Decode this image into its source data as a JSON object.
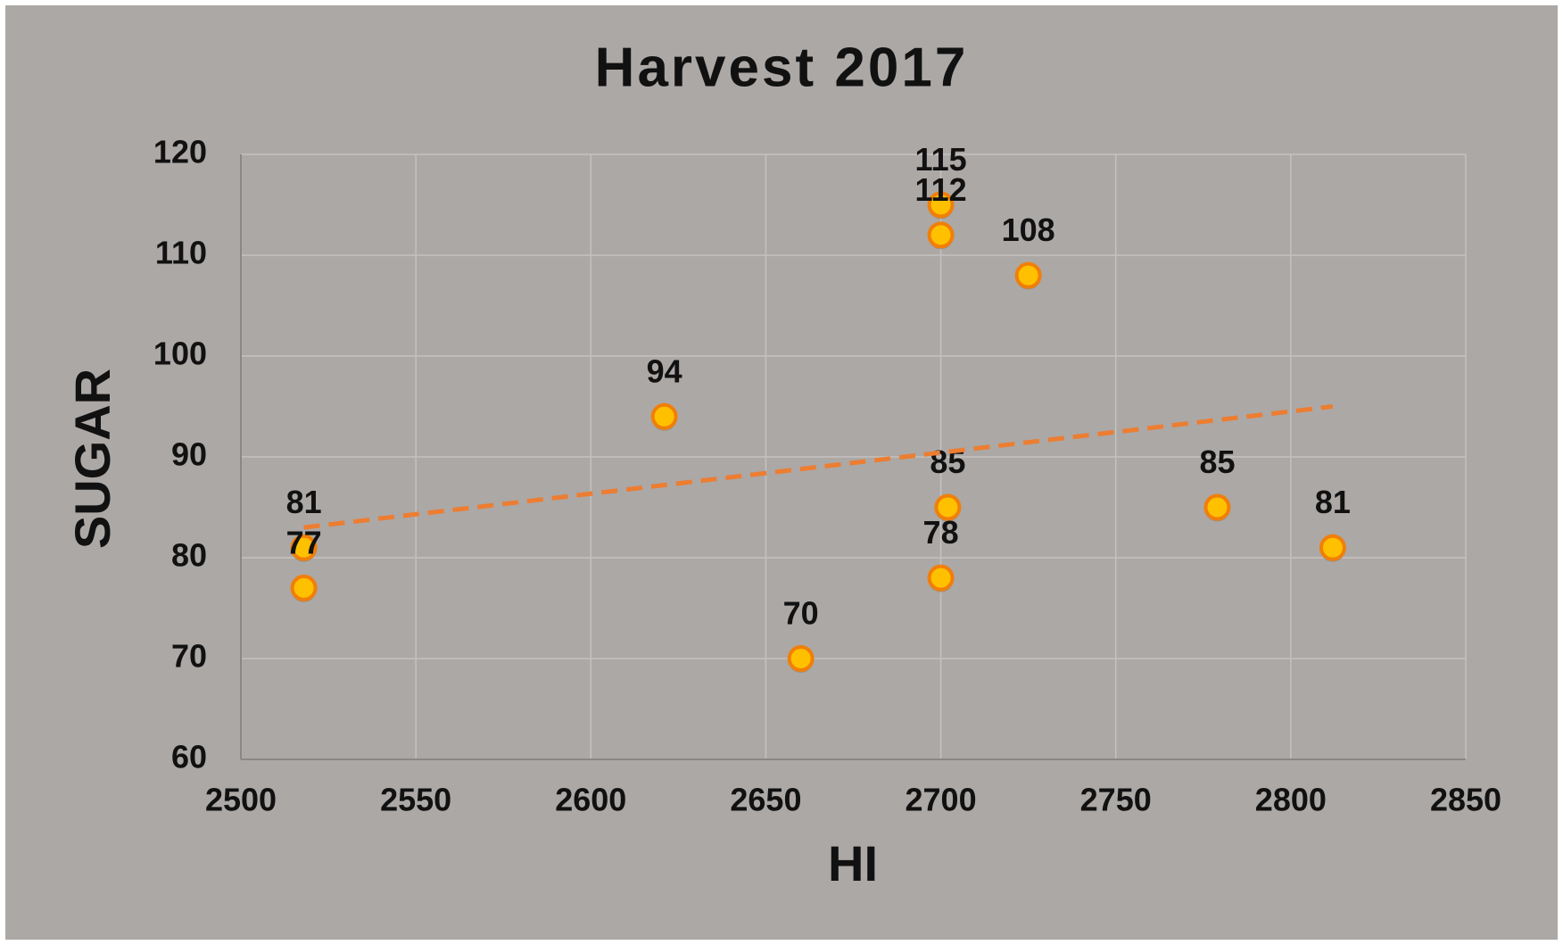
{
  "chart_data": {
    "type": "scatter",
    "title": "Harvest 2017",
    "x_label": "HI",
    "y_label": "SUGAR",
    "x": [
      2518,
      2518,
      2621,
      2660,
      2700,
      2700,
      2702,
      2700,
      2725,
      2779,
      2812
    ],
    "values": [
      81,
      77,
      94,
      70,
      115,
      112,
      85,
      78,
      108,
      85,
      81
    ],
    "color": "#ffc000",
    "edge_color": "#f07f09",
    "data_labels": true,
    "trendline": {
      "x": [
        2518,
        2812
      ],
      "values": [
        83,
        95
      ],
      "color": "#ed7d31",
      "dashed": true
    },
    "xlim": [
      2500,
      2850
    ],
    "xticks": [
      2500,
      2550,
      2600,
      2650,
      2700,
      2750,
      2800,
      2850
    ],
    "ylim": [
      60,
      120
    ],
    "yticks": [
      60,
      70,
      80,
      90,
      100,
      110,
      120
    ],
    "grid": true
  }
}
